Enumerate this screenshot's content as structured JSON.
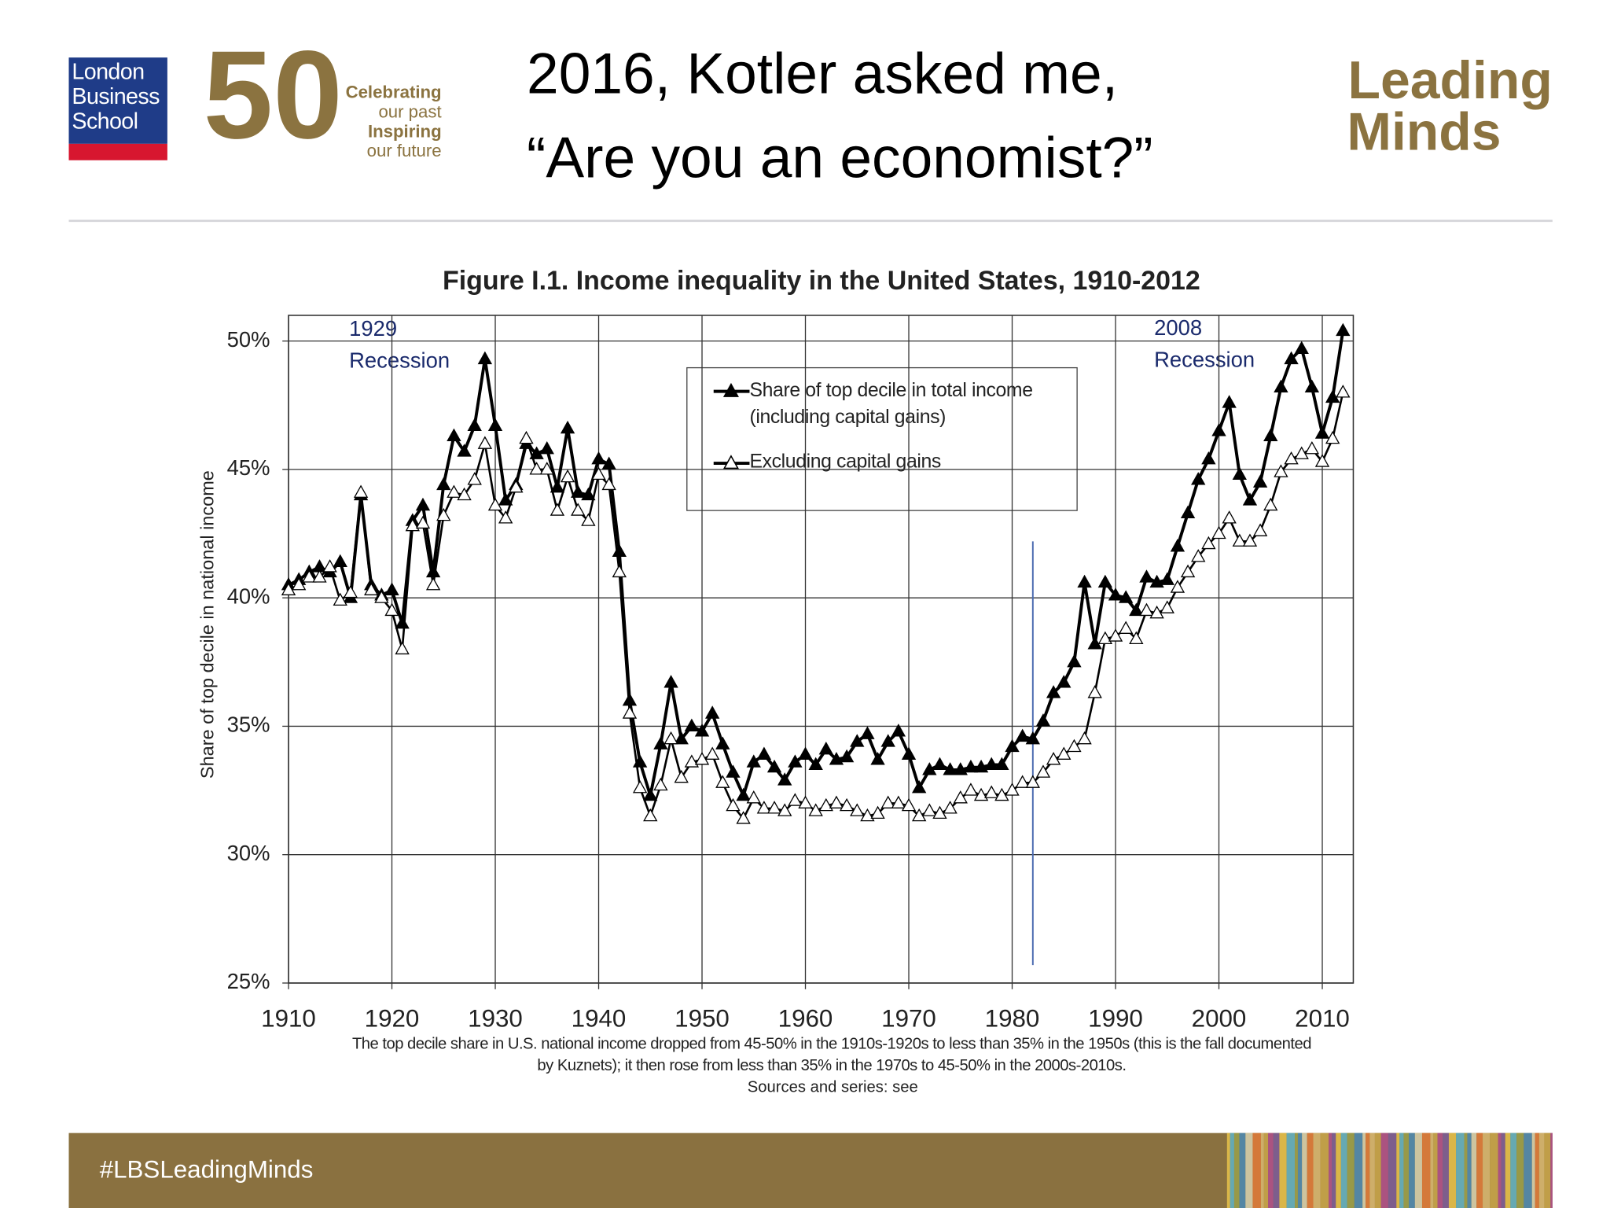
{
  "slide": {
    "logo": "London Business School",
    "anniversary": "50",
    "tagline": [
      "Celebrating",
      "our past",
      "Inspiring",
      "our future"
    ],
    "title": [
      "2016, Kotler asked me,",
      "“Are you an economist?”"
    ],
    "brand": [
      "Leading",
      "Minds"
    ],
    "hashtag": "#LBSLeadingMinds"
  },
  "chart_data": {
    "type": "line",
    "title": "Figure I.1. Income inequality in the United States, 1910-2012",
    "y_label": "Share of top decile in national income",
    "caption": [
      "The top decile share in U.S. national income dropped from 45-50% in the 1910s-1920s to less than 35% in the 1950s (this is the fall documented by Kuznets); it then rose from less than 35% in the 1970s to 45-50% in the 2000s-2010s.",
      "Sources and series: see"
    ],
    "annotations": [
      "1929 Recession",
      "2008 Recession"
    ],
    "vline": {
      "x": 1982,
      "y_from": 42.2,
      "y_to": 25.7,
      "color": "#4a6bb0"
    },
    "x": [
      1910,
      1911,
      1912,
      1913,
      1914,
      1915,
      1916,
      1917,
      1918,
      1919,
      1920,
      1921,
      1922,
      1923,
      1924,
      1925,
      1926,
      1927,
      1928,
      1929,
      1930,
      1931,
      1932,
      1933,
      1934,
      1935,
      1936,
      1937,
      1938,
      1939,
      1940,
      1941,
      1942,
      1943,
      1944,
      1945,
      1946,
      1947,
      1948,
      1949,
      1950,
      1951,
      1952,
      1953,
      1954,
      1955,
      1956,
      1957,
      1958,
      1959,
      1960,
      1961,
      1962,
      1963,
      1964,
      1965,
      1966,
      1967,
      1968,
      1969,
      1970,
      1971,
      1972,
      1973,
      1974,
      1975,
      1976,
      1977,
      1978,
      1979,
      1980,
      1981,
      1982,
      1983,
      1984,
      1985,
      1986,
      1987,
      1988,
      1989,
      1990,
      1991,
      1992,
      1993,
      1994,
      1995,
      1996,
      1997,
      1998,
      1999,
      2000,
      2001,
      2002,
      2003,
      2004,
      2005,
      2006,
      2007,
      2008,
      2009,
      2010,
      2011,
      2012
    ],
    "series": [
      {
        "name": "Share of top decile in total income (including capital gains)",
        "color": "#000000",
        "marker_fill": "#000000",
        "values": [
          40.5,
          40.7,
          41.0,
          41.2,
          41.0,
          41.4,
          40.0,
          44.0,
          40.5,
          40.1,
          40.3,
          39.0,
          43.0,
          43.6,
          41.0,
          44.4,
          46.3,
          45.7,
          46.7,
          49.3,
          46.7,
          43.8,
          44.4,
          46.0,
          45.6,
          45.8,
          44.3,
          46.6,
          44.1,
          44.0,
          45.4,
          45.2,
          41.8,
          36.0,
          33.6,
          32.3,
          34.3,
          36.7,
          34.5,
          35.0,
          34.8,
          35.5,
          34.3,
          33.2,
          32.3,
          33.6,
          33.9,
          33.4,
          32.9,
          33.6,
          33.9,
          33.5,
          34.1,
          33.7,
          33.8,
          34.4,
          34.7,
          33.7,
          34.4,
          34.8,
          33.9,
          32.6,
          33.3,
          33.5,
          33.3,
          33.3,
          33.4,
          33.4,
          33.5,
          33.5,
          34.2,
          34.6,
          34.5,
          35.2,
          36.3,
          36.7,
          37.5,
          40.6,
          38.2,
          40.6,
          40.1,
          40.0,
          39.5,
          40.8,
          40.6,
          40.7,
          42.0,
          43.3,
          44.6,
          45.4,
          46.5,
          47.6,
          44.8,
          43.8,
          44.5,
          46.3,
          48.2,
          49.3,
          49.7,
          48.2,
          46.4,
          47.8,
          50.4
        ]
      },
      {
        "name": "Excluding capital gains",
        "color": "#000000",
        "marker_fill": "#ffffff",
        "values": [
          40.3,
          40.5,
          40.8,
          40.8,
          41.2,
          39.9,
          40.2,
          44.1,
          40.3,
          40.0,
          39.5,
          38.0,
          42.8,
          42.9,
          40.5,
          43.2,
          44.1,
          44.0,
          44.6,
          46.0,
          43.6,
          43.1,
          44.3,
          46.2,
          45.0,
          45.0,
          43.4,
          44.7,
          43.4,
          43.0,
          44.8,
          44.4,
          41.0,
          35.5,
          32.6,
          31.5,
          32.7,
          34.5,
          33.0,
          33.6,
          33.7,
          33.9,
          32.8,
          31.9,
          31.4,
          32.2,
          31.8,
          31.8,
          31.7,
          32.1,
          32.0,
          31.7,
          31.9,
          32.0,
          31.9,
          31.7,
          31.5,
          31.6,
          32.0,
          32.0,
          31.9,
          31.5,
          31.7,
          31.6,
          31.8,
          32.2,
          32.5,
          32.3,
          32.4,
          32.3,
          32.5,
          32.8,
          32.8,
          33.2,
          33.7,
          33.9,
          34.2,
          34.5,
          36.3,
          38.4,
          38.5,
          38.8,
          38.4,
          39.5,
          39.4,
          39.6,
          40.4,
          41.0,
          41.6,
          42.1,
          42.5,
          43.1,
          42.2,
          42.2,
          42.6,
          43.6,
          44.9,
          45.4,
          45.6,
          45.8,
          45.3,
          46.2,
          48.0
        ]
      }
    ],
    "xlim": [
      1910,
      2013
    ],
    "xticks": [
      1910,
      1920,
      1930,
      1940,
      1950,
      1960,
      1970,
      1980,
      1990,
      2000,
      2010
    ],
    "ylim": [
      25,
      51
    ],
    "yticks": [
      {
        "value": 25,
        "label": "25%"
      },
      {
        "value": 30,
        "label": "30%"
      },
      {
        "value": 35,
        "label": "35%"
      },
      {
        "value": 40,
        "label": "40%"
      },
      {
        "value": 45,
        "label": "45%"
      },
      {
        "value": 50,
        "label": "50%"
      }
    ],
    "grid": true
  }
}
